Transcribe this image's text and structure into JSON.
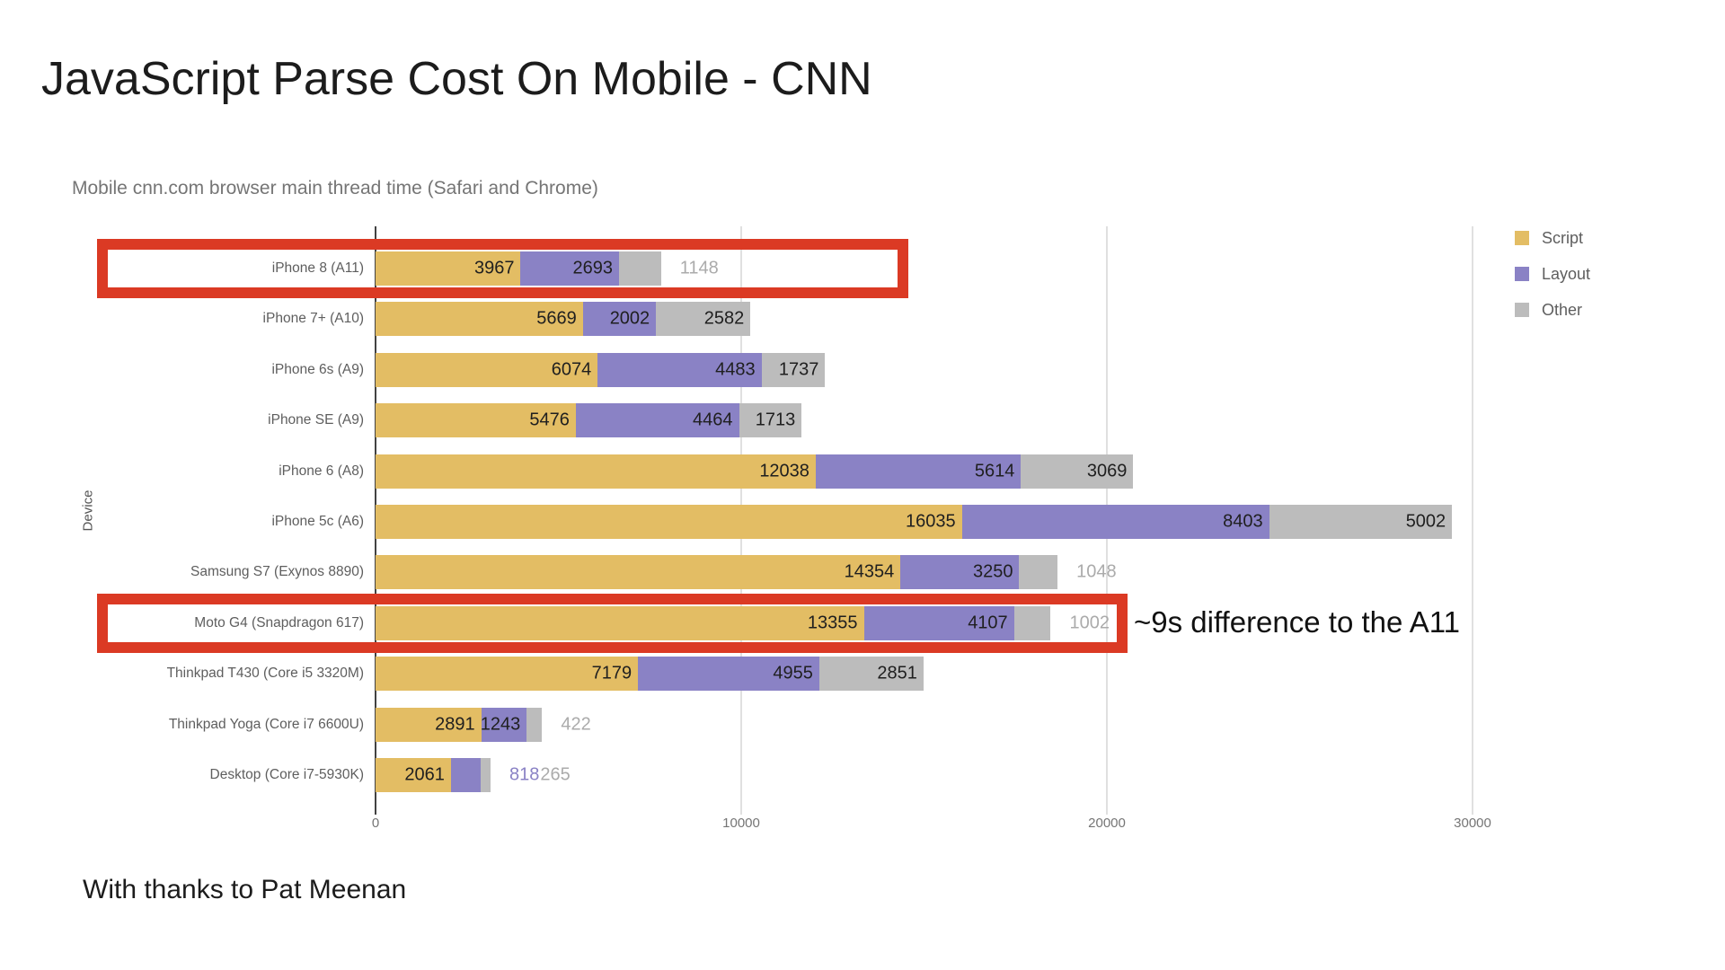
{
  "page": {
    "title": "JavaScript Parse Cost On Mobile - CNN",
    "credit": "With thanks to Pat Meenan"
  },
  "chart_data": {
    "type": "bar",
    "orientation": "horizontal",
    "stacked": true,
    "title": "Mobile cnn.com browser main thread time (Safari and Chrome)",
    "xlabel": "",
    "ylabel": "Device",
    "grid": true,
    "axis": {
      "min": 0,
      "max": 30500,
      "ticks": [
        0,
        10000,
        20000,
        30000
      ],
      "tick_labels": [
        "0",
        "10000",
        "20000",
        "30000"
      ]
    },
    "legend_position": "top-right",
    "categories": [
      "iPhone 8 (A11)",
      "iPhone 7+ (A10)",
      "iPhone 6s (A9)",
      "iPhone SE (A9)",
      "iPhone 6 (A8)",
      "iPhone 5c (A6)",
      "Samsung S7 (Exynos 8890)",
      "Moto G4 (Snapdragon 617)",
      "Thinkpad T430 (Core i5 3320M)",
      "Thinkpad Yoga (Core i7 6600U)",
      "Desktop (Core i7-5930K)"
    ],
    "series": [
      {
        "name": "Script",
        "color": "#e3bd64",
        "outside_label_color": "#ababab",
        "values": [
          3967,
          5669,
          6074,
          5476,
          12038,
          16035,
          14354,
          13355,
          7179,
          2891,
          2061
        ]
      },
      {
        "name": "Layout",
        "color": "#8a82c5",
        "outside_label_color": "#8a82c5",
        "values": [
          2693,
          2002,
          4483,
          4464,
          5614,
          8403,
          3250,
          4107,
          4955,
          1243,
          818
        ]
      },
      {
        "name": "Other",
        "color": "#bcbcbc",
        "outside_label_color": "#ababab",
        "values": [
          1148,
          2582,
          1737,
          1713,
          3069,
          5002,
          1048,
          1002,
          2851,
          422,
          265
        ]
      }
    ],
    "value_label_color": "#1f1f1f"
  },
  "annotations": {
    "note": "~9s difference to the A11",
    "box_color": "#db3a24",
    "highlighted_categories": [
      "iPhone 8 (A11)",
      "Moto G4 (Snapdragon 617)"
    ]
  }
}
